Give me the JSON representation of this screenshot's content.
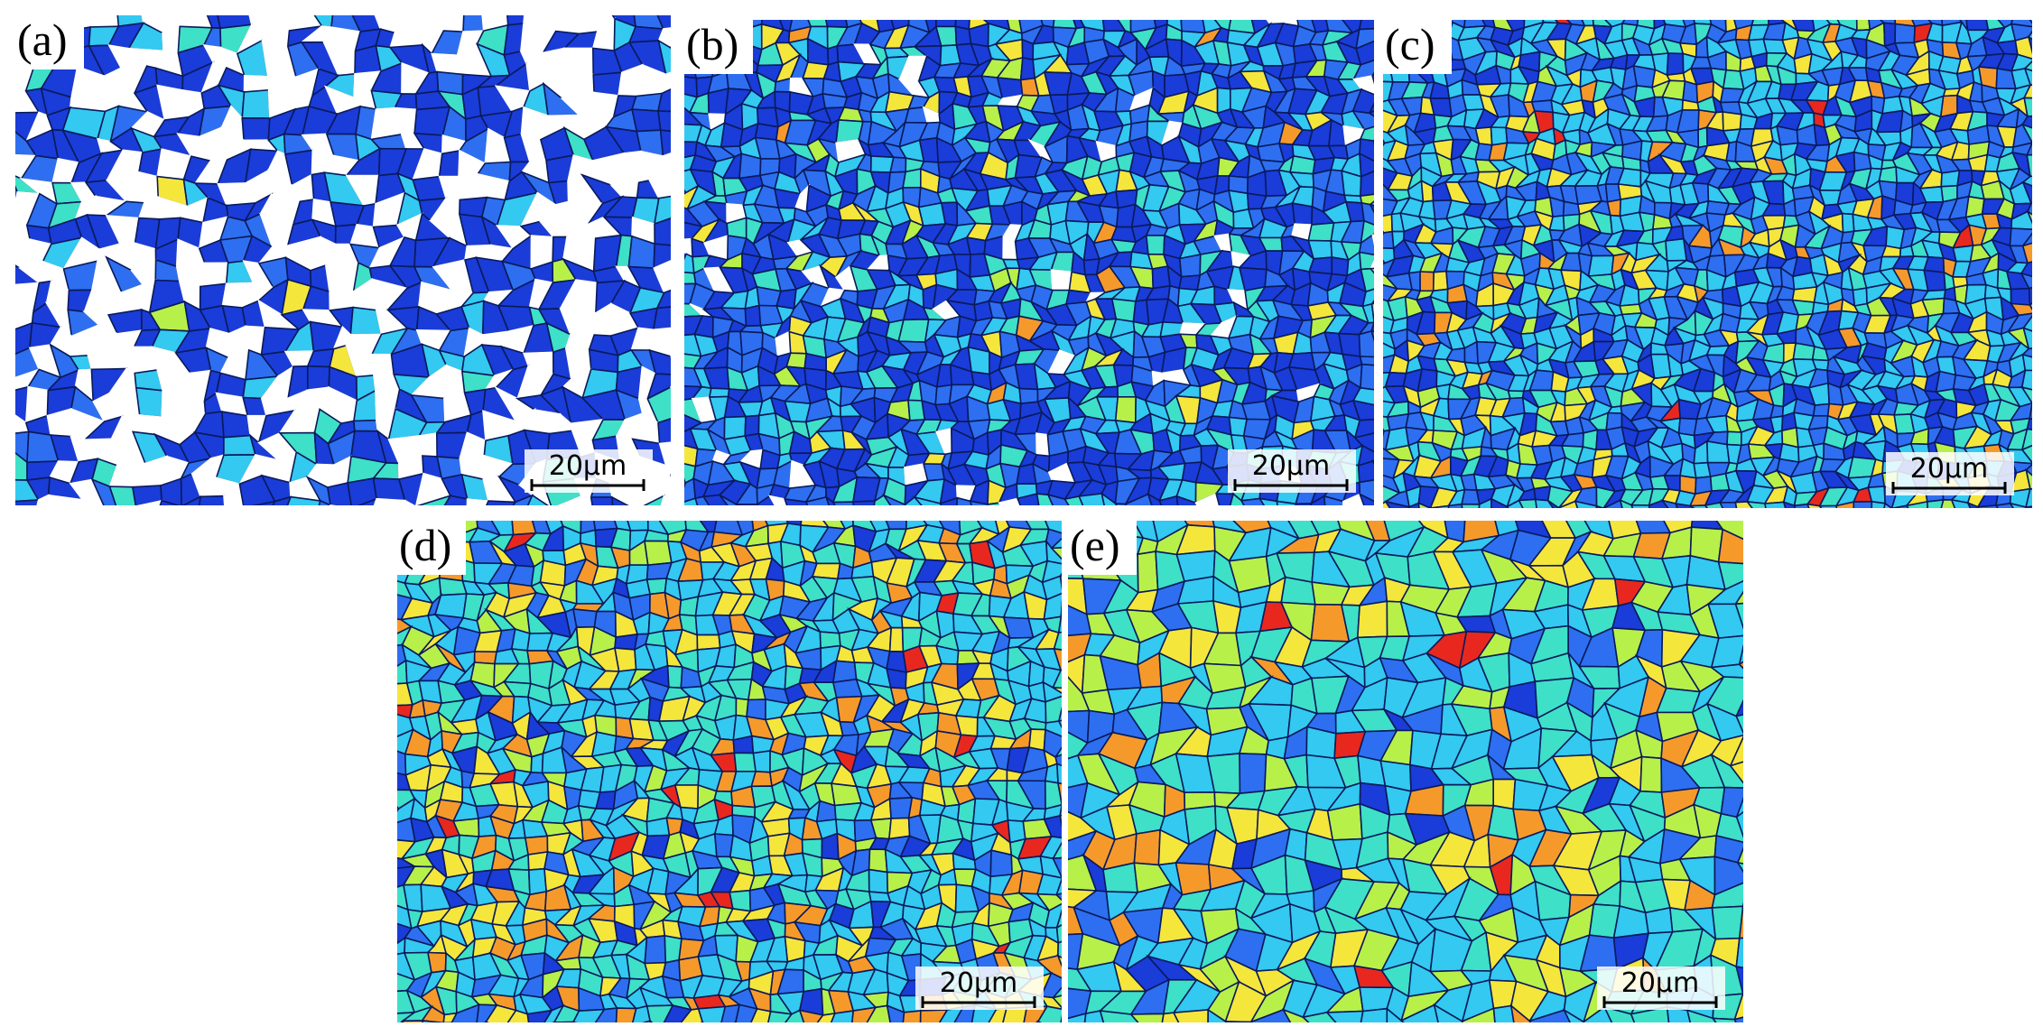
{
  "panels": [
    {
      "label": "(a)",
      "scale_label": "20μm"
    },
    {
      "label": "(b)",
      "scale_label": "20μm"
    },
    {
      "label": "(c)",
      "scale_label": "20μm"
    },
    {
      "label": "(d)",
      "scale_label": "20μm"
    },
    {
      "label": "(e)",
      "scale_label": "20μm"
    }
  ]
}
